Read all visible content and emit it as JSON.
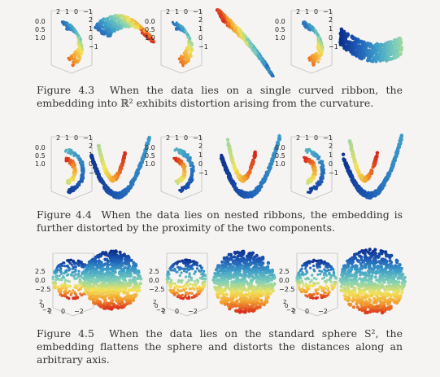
{
  "figures": [
    {
      "number": "Figure 4.3",
      "caption": "When the data lies on a single curved ribbon, the embedding into ℝ² exhibits distortion arising from the curvature.",
      "kind": "ribbon"
    },
    {
      "number": "Figure 4.4",
      "caption": "When the data lies on nested ribbons, the embedding is further distorted by the proximity of the two components.",
      "kind": "nested-ribbons"
    },
    {
      "number": "Figure 4.5",
      "caption": "When the data lies on the standard sphere S², the embedding flattens the sphere and distorts the distances along an arbitrary axis.",
      "kind": "sphere"
    }
  ],
  "axis_labels": {
    "ribbon_3d_top": [
      "2",
      "1",
      "0",
      "−1"
    ],
    "ribbon_3d_left": [
      "0.0",
      "0.5",
      "1.0"
    ],
    "ribbon_3d_right": [
      "2",
      "1",
      "0",
      "−1"
    ],
    "sphere_3d_left": [
      "2.5",
      "0.0",
      "−2.5"
    ],
    "sphere_3d_bottom": [
      "2",
      "0",
      "−2"
    ],
    "sphere_3d_depth": [
      "2",
      "0",
      "−2"
    ]
  },
  "colors": {
    "page_background": "#f5f4f2",
    "colormap": [
      "#0b2d8c",
      "#1f5fb8",
      "#3fa0c8",
      "#7fd0b8",
      "#f2e35a",
      "#f29b2c",
      "#d8261b"
    ]
  }
}
